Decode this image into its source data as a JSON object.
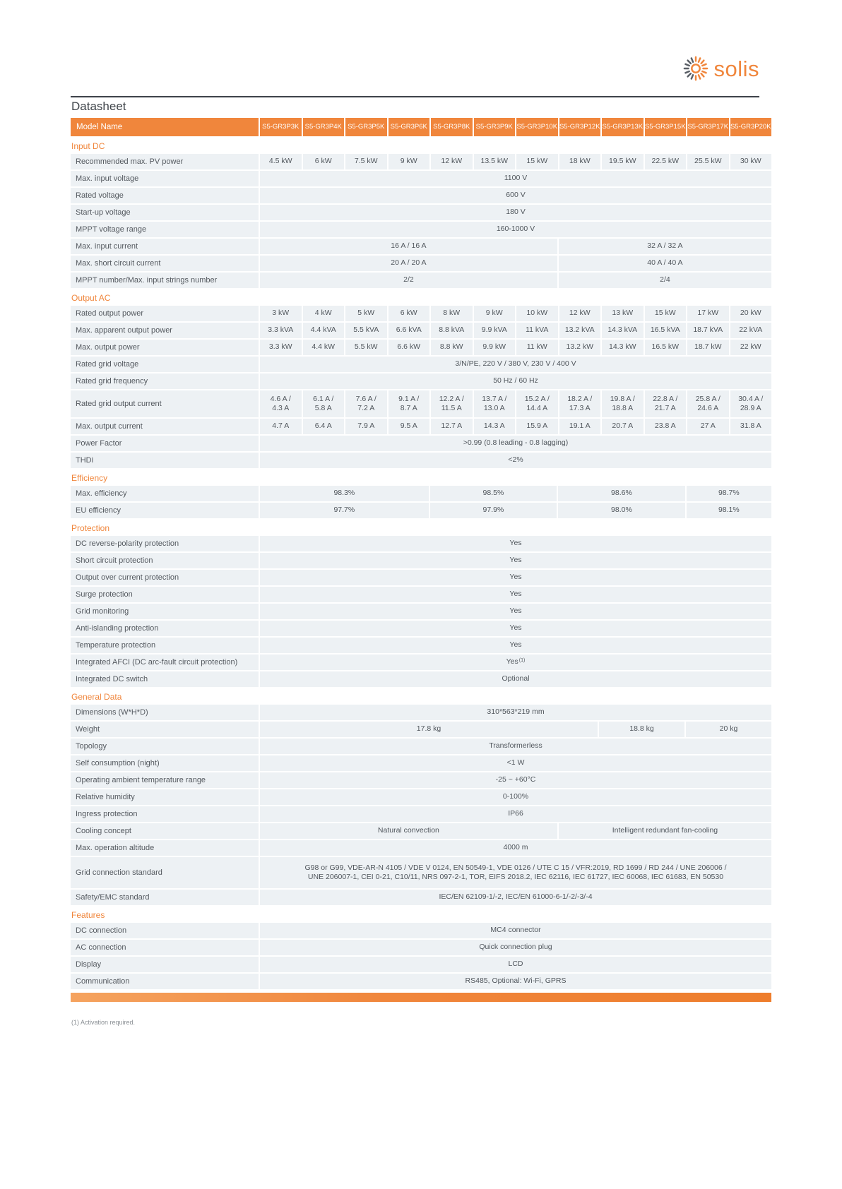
{
  "brand": {
    "logo_text": "solis",
    "accent_color": "#F0863C"
  },
  "page": {
    "title": "Datasheet",
    "footnote": "(1) Activation required."
  },
  "table": {
    "header_label": "Model Name",
    "models": [
      "S5-GR3P3K",
      "S5-GR3P4K",
      "S5-GR3P5K",
      "S5-GR3P6K",
      "S5-GR3P8K",
      "S5-GR3P9K",
      "S5-GR3P10K",
      "S5-GR3P12K",
      "S5-GR3P13K",
      "S5-GR3P15K",
      "S5-GR3P17K",
      "S5-GR3P20K"
    ],
    "sections": [
      {
        "title": "Input DC",
        "rows": [
          {
            "label": "Recommended max. PV power",
            "cells": [
              [
                "4.5 kW",
                1
              ],
              [
                "6 kW",
                1
              ],
              [
                "7.5 kW",
                1
              ],
              [
                "9 kW",
                1
              ],
              [
                "12 kW",
                1
              ],
              [
                "13.5 kW",
                1
              ],
              [
                "15 kW",
                1
              ],
              [
                "18 kW",
                1
              ],
              [
                "19.5 kW",
                1
              ],
              [
                "22.5 kW",
                1
              ],
              [
                "25.5 kW",
                1
              ],
              [
                "30 kW",
                1
              ]
            ]
          },
          {
            "label": "Max. input voltage",
            "cells": [
              [
                "1100 V",
                12
              ]
            ]
          },
          {
            "label": "Rated voltage",
            "cells": [
              [
                "600 V",
                12
              ]
            ]
          },
          {
            "label": "Start-up voltage",
            "cells": [
              [
                "180 V",
                12
              ]
            ]
          },
          {
            "label": "MPPT voltage range",
            "cells": [
              [
                "160-1000 V",
                12
              ]
            ]
          },
          {
            "label": "Max. input current",
            "cells": [
              [
                "16 A / 16 A",
                7
              ],
              [
                "32 A / 32 A",
                5
              ]
            ]
          },
          {
            "label": "Max. short circuit current",
            "cells": [
              [
                "20 A / 20 A",
                7
              ],
              [
                "40 A / 40 A",
                5
              ]
            ]
          },
          {
            "label": "MPPT number/Max. input strings number",
            "cells": [
              [
                "2/2",
                7
              ],
              [
                "2/4",
                5
              ]
            ]
          }
        ]
      },
      {
        "title": "Output AC",
        "rows": [
          {
            "label": "Rated output power",
            "cells": [
              [
                "3 kW",
                1
              ],
              [
                "4 kW",
                1
              ],
              [
                "5 kW",
                1
              ],
              [
                "6 kW",
                1
              ],
              [
                "8 kW",
                1
              ],
              [
                "9 kW",
                1
              ],
              [
                "10 kW",
                1
              ],
              [
                "12 kW",
                1
              ],
              [
                "13 kW",
                1
              ],
              [
                "15 kW",
                1
              ],
              [
                "17 kW",
                1
              ],
              [
                "20 kW",
                1
              ]
            ]
          },
          {
            "label": "Max. apparent output power",
            "cells": [
              [
                "3.3 kVA",
                1
              ],
              [
                "4.4 kVA",
                1
              ],
              [
                "5.5 kVA",
                1
              ],
              [
                "6.6 kVA",
                1
              ],
              [
                "8.8 kVA",
                1
              ],
              [
                "9.9 kVA",
                1
              ],
              [
                "11 kVA",
                1
              ],
              [
                "13.2 kVA",
                1
              ],
              [
                "14.3 kVA",
                1
              ],
              [
                "16.5 kVA",
                1
              ],
              [
                "18.7 kVA",
                1
              ],
              [
                "22 kVA",
                1
              ]
            ]
          },
          {
            "label": "Max. output power",
            "cells": [
              [
                "3.3 kW",
                1
              ],
              [
                "4.4 kW",
                1
              ],
              [
                "5.5 kW",
                1
              ],
              [
                "6.6 kW",
                1
              ],
              [
                "8.8 kW",
                1
              ],
              [
                "9.9 kW",
                1
              ],
              [
                "11 kW",
                1
              ],
              [
                "13.2 kW",
                1
              ],
              [
                "14.3 kW",
                1
              ],
              [
                "16.5 kW",
                1
              ],
              [
                "18.7 kW",
                1
              ],
              [
                "22 kW",
                1
              ]
            ]
          },
          {
            "label": "Rated grid voltage",
            "cells": [
              [
                "3/N/PE, 220 V / 380 V, 230 V / 400 V",
                12
              ]
            ]
          },
          {
            "label": "Rated grid frequency",
            "cells": [
              [
                "50 Hz / 60 Hz",
                12
              ]
            ]
          },
          {
            "label": "Rated grid output current",
            "cells": [
              [
                "4.6 A /\n4.3 A",
                1
              ],
              [
                "6.1 A /\n5.8 A",
                1
              ],
              [
                "7.6 A /\n7.2 A",
                1
              ],
              [
                "9.1 A /\n8.7 A",
                1
              ],
              [
                "12.2 A /\n11.5 A",
                1
              ],
              [
                "13.7 A /\n13.0 A",
                1
              ],
              [
                "15.2 A /\n14.4 A",
                1
              ],
              [
                "18.2 A /\n17.3 A",
                1
              ],
              [
                "19.8 A /\n18.8 A",
                1
              ],
              [
                "22.8 A /\n21.7 A",
                1
              ],
              [
                "25.8 A /\n24.6 A",
                1
              ],
              [
                "30.4 A /\n28.9 A",
                1
              ]
            ]
          },
          {
            "label": "Max. output current",
            "cells": [
              [
                "4.7 A",
                1
              ],
              [
                "6.4 A",
                1
              ],
              [
                "7.9 A",
                1
              ],
              [
                "9.5 A",
                1
              ],
              [
                "12.7 A",
                1
              ],
              [
                "14.3 A",
                1
              ],
              [
                "15.9 A",
                1
              ],
              [
                "19.1 A",
                1
              ],
              [
                "20.7 A",
                1
              ],
              [
                "23.8 A",
                1
              ],
              [
                "27 A",
                1
              ],
              [
                "31.8 A",
                1
              ]
            ]
          },
          {
            "label": "Power Factor",
            "cells": [
              [
                ">0.99 (0.8 leading - 0.8 lagging)",
                12
              ]
            ]
          },
          {
            "label": "THDi",
            "cells": [
              [
                "<2%",
                12
              ]
            ]
          }
        ]
      },
      {
        "title": "Efficiency",
        "rows": [
          {
            "label": "Max. efficiency",
            "cells": [
              [
                "98.3%",
                4
              ],
              [
                "98.5%",
                3
              ],
              [
                "98.6%",
                3
              ],
              [
                "98.7%",
                2
              ]
            ]
          },
          {
            "label": "EU efficiency",
            "cells": [
              [
                "97.7%",
                4
              ],
              [
                "97.9%",
                3
              ],
              [
                "98.0%",
                3
              ],
              [
                "98.1%",
                2
              ]
            ]
          }
        ]
      },
      {
        "title": "Protection",
        "rows": [
          {
            "label": "DC reverse-polarity protection",
            "cells": [
              [
                "Yes",
                12
              ]
            ]
          },
          {
            "label": "Short circuit protection",
            "cells": [
              [
                "Yes",
                12
              ]
            ]
          },
          {
            "label": "Output over current protection",
            "cells": [
              [
                "Yes",
                12
              ]
            ]
          },
          {
            "label": "Surge protection",
            "cells": [
              [
                "Yes",
                12
              ]
            ]
          },
          {
            "label": "Grid monitoring",
            "cells": [
              [
                "Yes",
                12
              ]
            ]
          },
          {
            "label": "Anti-islanding protection",
            "cells": [
              [
                "Yes",
                12
              ]
            ]
          },
          {
            "label": "Temperature protection",
            "cells": [
              [
                "Yes",
                12
              ]
            ]
          },
          {
            "label": "Integrated AFCI (DC arc-fault circuit protection)",
            "cells": [
              [
                "Yes",
                12,
                "(1)"
              ]
            ]
          },
          {
            "label": "Integrated DC switch",
            "cells": [
              [
                "Optional",
                12
              ]
            ]
          }
        ]
      },
      {
        "title": "General Data",
        "rows": [
          {
            "label": "Dimensions (W*H*D)",
            "cells": [
              [
                "310*563*219 mm",
                12
              ]
            ]
          },
          {
            "label": "Weight",
            "cells": [
              [
                "17.8 kg",
                8
              ],
              [
                "18.8 kg",
                2
              ],
              [
                "20 kg",
                2
              ]
            ]
          },
          {
            "label": "Topology",
            "cells": [
              [
                "Transformerless",
                12
              ]
            ]
          },
          {
            "label": "Self consumption (night)",
            "cells": [
              [
                "<1 W",
                12
              ]
            ]
          },
          {
            "label": "Operating ambient temperature range",
            "cells": [
              [
                "-25 ~ +60°C",
                12
              ]
            ]
          },
          {
            "label": "Relative humidity",
            "cells": [
              [
                "0-100%",
                12
              ]
            ]
          },
          {
            "label": "Ingress protection",
            "cells": [
              [
                "IP66",
                12
              ]
            ]
          },
          {
            "label": "Cooling concept",
            "cells": [
              [
                "Natural convection",
                7
              ],
              [
                "Intelligent redundant fan-cooling",
                5
              ]
            ]
          },
          {
            "label": "Max. operation altitude",
            "cells": [
              [
                "4000 m",
                12
              ]
            ]
          },
          {
            "label": "Grid connection standard",
            "cells": [
              [
                "G98 or G99, VDE-AR-N 4105 / VDE V 0124, EN 50549-1, VDE 0126 / UTE C 15 / VFR:2019, RD 1699 / RD 244 / UNE 206006 /\nUNE 206007-1, CEI 0-21, C10/11, NRS 097-2-1, TOR, EIFS 2018.2, IEC 62116, IEC 61727, IEC 60068, IEC 61683, EN 50530",
                12
              ]
            ]
          },
          {
            "label": "Safety/EMC standard",
            "cells": [
              [
                "IEC/EN 62109-1/-2, IEC/EN 61000-6-1/-2/-3/-4",
                12
              ]
            ]
          }
        ]
      },
      {
        "title": "Features",
        "rows": [
          {
            "label": "DC connection",
            "cells": [
              [
                "MC4 connector",
                12
              ]
            ]
          },
          {
            "label": "AC connection",
            "cells": [
              [
                "Quick connection plug",
                12
              ]
            ]
          },
          {
            "label": "Display",
            "cells": [
              [
                "LCD",
                12
              ]
            ]
          },
          {
            "label": "Communication",
            "cells": [
              [
                "RS485, Optional: Wi-Fi, GPRS",
                12
              ]
            ]
          }
        ]
      }
    ]
  }
}
